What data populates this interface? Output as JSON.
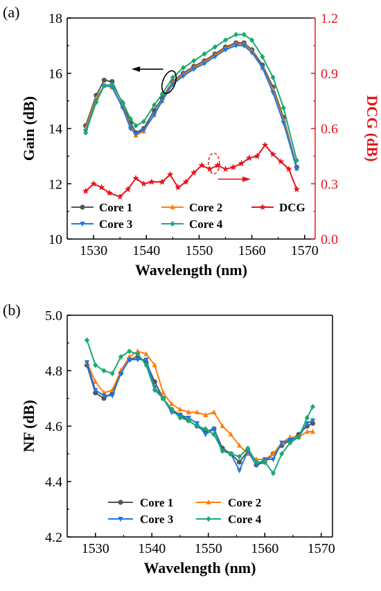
{
  "chart_data": [
    {
      "panel": "(a)",
      "type": "line",
      "xlabel": "Wavelength (nm)",
      "ylabel": "Gain (dB)",
      "y2label": "DCG (dB)",
      "xlim": [
        1525,
        1572
      ],
      "ylim": [
        10,
        18
      ],
      "y2lim": [
        0.0,
        1.2
      ],
      "xticks": [
        "1530",
        "1540",
        "1550",
        "1560",
        "1570"
      ],
      "yticks": [
        "10",
        "12",
        "14",
        "16",
        "18"
      ],
      "y2ticks": [
        "0.0",
        "0.3",
        "0.6",
        "0.9",
        "1.2"
      ],
      "legend_position": "bottom-left",
      "colors": {
        "y2axis": "#e8141c"
      },
      "x": [
        1528.5,
        1530.5,
        1532.0,
        1533.5,
        1535.5,
        1537.0,
        1538.0,
        1539.5,
        1541.5,
        1543.0,
        1545.0,
        1547.0,
        1549.0,
        1551.0,
        1553.0,
        1555.0,
        1557.0,
        1558.5,
        1560.0,
        1562.0,
        1564.0,
        1566.0,
        1568.5
      ],
      "series": [
        {
          "name": "Core 1",
          "axis": "left",
          "color": "#555555",
          "marker": "circle",
          "values": [
            14.1,
            15.2,
            15.75,
            15.7,
            14.9,
            14.2,
            13.85,
            14.0,
            14.65,
            15.1,
            15.7,
            16.0,
            16.25,
            16.45,
            16.7,
            16.95,
            17.1,
            17.1,
            16.85,
            16.3,
            15.5,
            14.4,
            12.6
          ]
        },
        {
          "name": "Core 2",
          "axis": "left",
          "color": "#ff7f0e",
          "marker": "triangle-up",
          "values": [
            14.0,
            15.1,
            15.55,
            15.5,
            14.8,
            14.05,
            13.75,
            13.9,
            14.5,
            15.0,
            15.65,
            15.95,
            16.2,
            16.4,
            16.65,
            16.9,
            17.05,
            17.05,
            16.8,
            16.2,
            15.4,
            14.3,
            12.55
          ]
        },
        {
          "name": "Core 3",
          "axis": "left",
          "color": "#1f77e4",
          "marker": "triangle-down",
          "values": [
            13.9,
            15.0,
            15.55,
            15.5,
            14.75,
            14.0,
            13.8,
            13.95,
            14.5,
            15.0,
            15.6,
            15.9,
            16.15,
            16.35,
            16.6,
            16.85,
            17.0,
            17.0,
            16.75,
            16.2,
            15.3,
            14.2,
            12.55
          ]
        },
        {
          "name": "Core 4",
          "axis": "left",
          "color": "#1aaa6e",
          "marker": "diamond",
          "values": [
            13.85,
            14.95,
            15.55,
            15.6,
            14.95,
            14.35,
            14.1,
            14.25,
            14.85,
            15.25,
            15.85,
            16.2,
            16.45,
            16.7,
            16.95,
            17.2,
            17.4,
            17.4,
            17.2,
            16.6,
            15.85,
            14.75,
            12.85
          ]
        }
      ],
      "dcg": {
        "name": "DCG",
        "axis": "right",
        "color": "#e8141c",
        "marker": "star",
        "x": [
          1528.5,
          1530.0,
          1531.5,
          1533.0,
          1535.0,
          1536.5,
          1538.0,
          1539.5,
          1541.0,
          1543.0,
          1544.5,
          1546.0,
          1547.5,
          1549.0,
          1550.5,
          1552.0,
          1553.5,
          1555.0,
          1556.5,
          1558.0,
          1559.5,
          1561.0,
          1562.5,
          1564.0,
          1565.5,
          1567.0,
          1568.5
        ],
        "values": [
          0.26,
          0.3,
          0.28,
          0.25,
          0.23,
          0.27,
          0.33,
          0.3,
          0.31,
          0.31,
          0.35,
          0.28,
          0.31,
          0.36,
          0.4,
          0.38,
          0.4,
          0.38,
          0.39,
          0.41,
          0.44,
          0.45,
          0.51,
          0.46,
          0.42,
          0.38,
          0.27
        ]
      }
    },
    {
      "panel": "(b)",
      "type": "line",
      "xlabel": "Wavelength (nm)",
      "ylabel": "NF (dB)",
      "xlim": [
        1525,
        1572
      ],
      "ylim": [
        4.2,
        5.0
      ],
      "xticks": [
        "1530",
        "1540",
        "1550",
        "1560",
        "1570"
      ],
      "yticks": [
        "4.2",
        "4.4",
        "4.6",
        "4.8",
        "5.0"
      ],
      "legend_position": "bottom-left",
      "x": [
        1528.5,
        1530.0,
        1531.5,
        1533.0,
        1534.5,
        1536.0,
        1537.5,
        1539.0,
        1540.5,
        1542.0,
        1543.5,
        1545.0,
        1546.5,
        1548.0,
        1549.5,
        1551.0,
        1552.5,
        1554.0,
        1555.5,
        1557.0,
        1558.5,
        1560.0,
        1561.5,
        1563.0,
        1564.5,
        1566.0,
        1567.5,
        1568.5
      ],
      "series": [
        {
          "name": "Core 1",
          "color": "#555555",
          "marker": "circle",
          "values": [
            4.82,
            4.72,
            4.7,
            4.72,
            4.79,
            4.84,
            4.85,
            4.83,
            4.76,
            4.7,
            4.66,
            4.64,
            4.62,
            4.6,
            4.58,
            4.59,
            4.52,
            4.5,
            4.47,
            4.51,
            4.46,
            4.47,
            4.5,
            4.53,
            4.55,
            4.57,
            4.6,
            4.61
          ]
        },
        {
          "name": "Core 2",
          "color": "#ff7f0e",
          "marker": "triangle-up",
          "values": [
            4.83,
            4.76,
            4.72,
            4.73,
            4.8,
            4.85,
            4.87,
            4.86,
            4.82,
            4.72,
            4.68,
            4.66,
            4.65,
            4.65,
            4.64,
            4.65,
            4.6,
            4.57,
            4.53,
            4.5,
            4.48,
            4.48,
            4.5,
            4.54,
            4.56,
            4.56,
            4.58,
            4.58
          ]
        },
        {
          "name": "Core 3",
          "color": "#1f77e4",
          "marker": "triangle-down",
          "values": [
            4.83,
            4.73,
            4.71,
            4.71,
            4.79,
            4.84,
            4.84,
            4.84,
            4.74,
            4.7,
            4.65,
            4.64,
            4.63,
            4.61,
            4.57,
            4.59,
            4.51,
            4.5,
            4.44,
            4.51,
            4.46,
            4.48,
            4.48,
            4.54,
            4.55,
            4.56,
            4.61,
            4.62
          ]
        },
        {
          "name": "Core 4",
          "color": "#1aaa6e",
          "marker": "diamond",
          "values": [
            4.91,
            4.82,
            4.8,
            4.79,
            4.85,
            4.87,
            4.86,
            4.82,
            4.73,
            4.7,
            4.66,
            4.63,
            4.62,
            4.6,
            4.59,
            4.57,
            4.51,
            4.5,
            4.49,
            4.52,
            4.47,
            4.47,
            4.43,
            4.5,
            4.54,
            4.56,
            4.63,
            4.67
          ]
        }
      ]
    }
  ]
}
